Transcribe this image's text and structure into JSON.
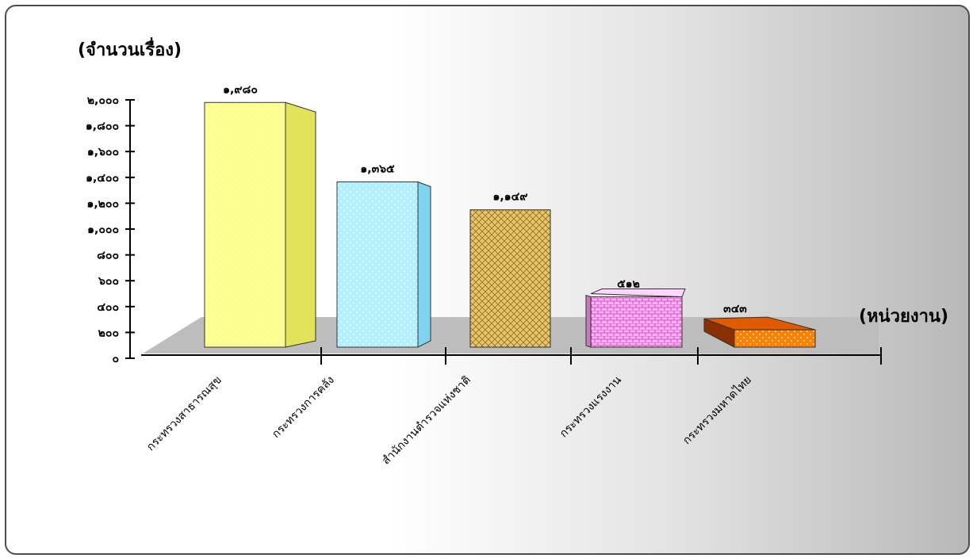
{
  "chart_data": {
    "type": "bar",
    "ylabel": "(จำนวนเรื่อง)",
    "xlabel": "(หน่วยงาน)",
    "ylim": [
      0,
      2000
    ],
    "yticks": [
      "๐",
      "๒๐๐",
      "๔๐๐",
      "๖๐๐",
      "๘๐๐",
      "๑,๐๐๐",
      "๑,๒๐๐",
      "๑,๔๐๐",
      "๑,๖๐๐",
      "๑,๘๐๐",
      "๒,๐๐๐"
    ],
    "grid": false,
    "categories": [
      "กระทรวงสาธารณสุข",
      "กระทรวงการคลัง",
      "สำนักงานตำรวจแห่งชาติ",
      "กระทรวงแรงงาน",
      "กระทรวงมหาดไทย"
    ],
    "values": [
      1980,
      1365,
      1149,
      512,
      343
    ],
    "data_labels": [
      "๑,๙๘๐",
      "๑,๓๖๕",
      "๑,๑๔๙",
      "๕๑๒",
      "๓๔๓"
    ],
    "colors": [
      "#ffff8c",
      "#b3f0ff",
      "#e8c56a",
      "#ffb3ff",
      "#ff7f00"
    ],
    "side_colors": [
      "#e3e35a",
      "#7fd3ef",
      "#c6a44a",
      "#c77bbd",
      "#8a3000"
    ],
    "top_colors": [
      "#ffffb8",
      "#cff6ff",
      "#f2dca0",
      "#ffd6ff",
      "#e05a00"
    ],
    "patterns": [
      "dots",
      "dots",
      "weave",
      "brick",
      "dots"
    ],
    "floor_color": "#bdbdbd",
    "background": "gradient-white-to-gray"
  }
}
